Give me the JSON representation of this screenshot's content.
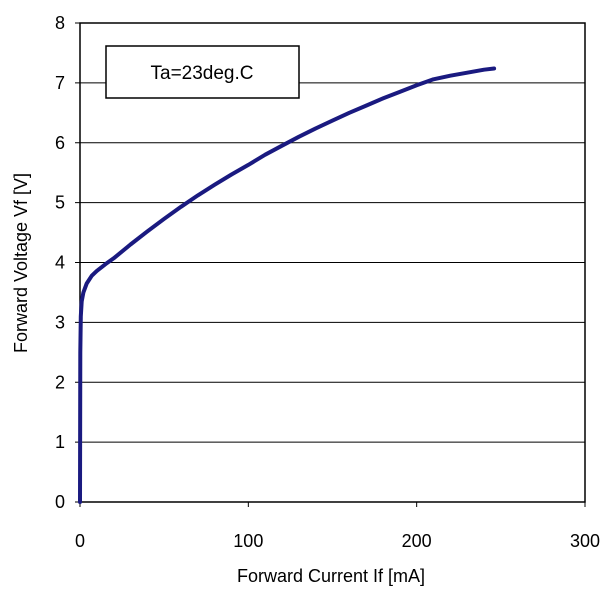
{
  "chart_data": {
    "type": "line",
    "title": "",
    "xlabel": "Forward Current If [mA]",
    "ylabel": "Forward Voltage Vf [V]",
    "xlim": [
      0,
      300
    ],
    "ylim": [
      0,
      8
    ],
    "x_ticks": [
      "0",
      "100",
      "200",
      "300"
    ],
    "y_ticks": [
      "0",
      "1",
      "2",
      "3",
      "4",
      "5",
      "6",
      "7",
      "8"
    ],
    "grid": true,
    "annotation": "Ta=23deg.C",
    "series_color": "#1a1a80",
    "series": [
      {
        "x": [
          0,
          0.2,
          0.5,
          1,
          2,
          4,
          7,
          10,
          15,
          20,
          30,
          40,
          50,
          60,
          70,
          80,
          90,
          100,
          110,
          120,
          130,
          140,
          150,
          160,
          170,
          180,
          190,
          200,
          210,
          220,
          230,
          240,
          246
        ],
        "y": [
          0,
          2.5,
          3.1,
          3.35,
          3.5,
          3.65,
          3.78,
          3.86,
          3.97,
          4.07,
          4.3,
          4.52,
          4.73,
          4.93,
          5.12,
          5.3,
          5.47,
          5.63,
          5.8,
          5.95,
          6.1,
          6.24,
          6.37,
          6.5,
          6.62,
          6.74,
          6.85,
          6.96,
          7.06,
          7.12,
          7.17,
          7.22,
          7.24
        ]
      }
    ]
  }
}
